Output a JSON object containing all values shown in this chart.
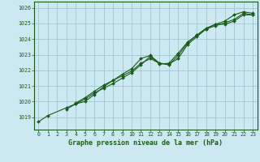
{
  "title": "Graphe pression niveau de la mer (hPa)",
  "bg_color": "#cce8f0",
  "grid_color": "#9bbfcb",
  "line_color": "#1a5c1a",
  "x_min": -0.5,
  "x_max": 23.5,
  "y_min": 1018.2,
  "y_max": 1026.4,
  "yticks": [
    1019,
    1020,
    1021,
    1022,
    1023,
    1024,
    1025,
    1026
  ],
  "xticks": [
    0,
    1,
    2,
    3,
    4,
    5,
    6,
    7,
    8,
    9,
    10,
    11,
    12,
    13,
    14,
    15,
    16,
    17,
    18,
    19,
    20,
    21,
    22,
    23
  ],
  "series1": [
    1018.7,
    1019.1,
    null,
    1019.6,
    1019.85,
    1020.15,
    1020.55,
    1020.85,
    1021.15,
    1021.5,
    1021.85,
    1022.35,
    1022.9,
    1022.4,
    1022.45,
    1023.1,
    1023.8,
    1024.25,
    1024.7,
    1024.95,
    1025.15,
    1025.55,
    1025.75,
    1025.65
  ],
  "series2": [
    null,
    null,
    null,
    1019.5,
    1019.85,
    1020.0,
    1020.45,
    1020.95,
    1021.35,
    1021.75,
    1022.1,
    1022.75,
    1022.95,
    1022.45,
    1022.4,
    1022.75,
    1023.65,
    1024.15,
    1024.65,
    1024.95,
    1024.95,
    1025.15,
    1025.55,
    1025.55
  ],
  "series3": [
    null,
    null,
    null,
    null,
    1019.9,
    1020.25,
    1020.65,
    1021.05,
    1021.35,
    1021.65,
    1021.95,
    1022.45,
    1022.75,
    1022.45,
    1022.35,
    1022.95,
    1023.75,
    1024.25,
    1024.65,
    1024.85,
    1025.05,
    1025.25,
    1025.65,
    1025.55
  ]
}
